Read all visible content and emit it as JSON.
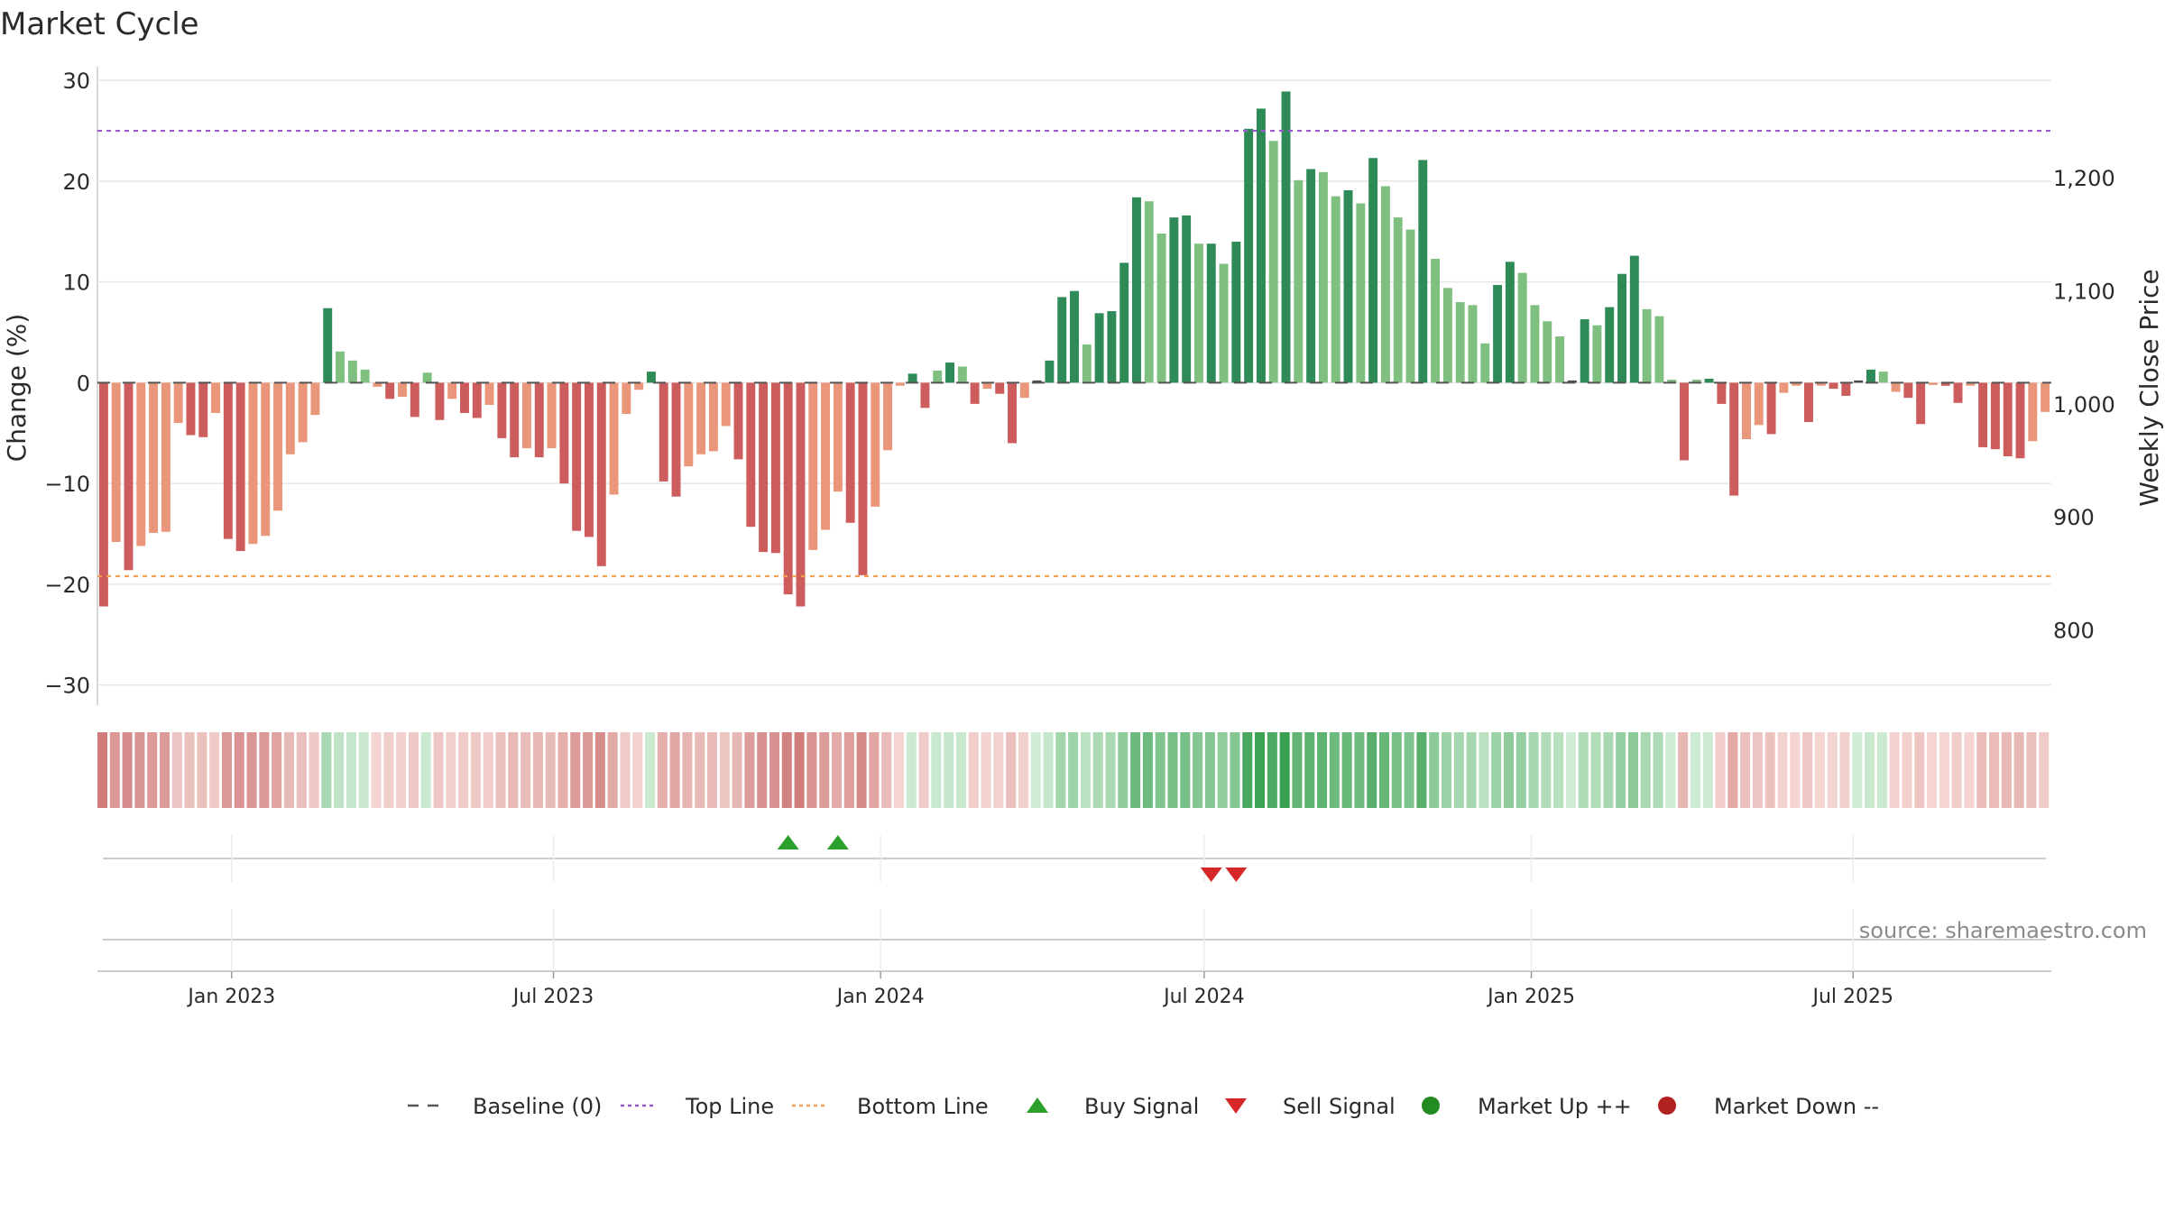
{
  "chart_data": {
    "type": "bar",
    "title": "Market Cycle",
    "ylabel_left": "Change (%)",
    "ylabel_right": "Weekly Close Price",
    "source": "source: sharemaestro.com",
    "ylim": [
      -32,
      31
    ],
    "yticks": [
      30,
      20,
      10,
      0,
      -10,
      -20,
      -30
    ],
    "ytick_labels": [
      "30",
      "20",
      "10",
      "0",
      "−10",
      "−20",
      "−30"
    ],
    "price_ticks": [
      1200,
      1100,
      1000,
      900,
      800
    ],
    "price_tick_labels": [
      "1,200",
      "1,100",
      "1,000",
      "900",
      "800"
    ],
    "top_line": 25,
    "bottom_line": -19.2,
    "x_start": "2022-10-21",
    "x_step_days": 7,
    "x_ticks": [
      "2023-01-01",
      "2023-07-01",
      "2024-01-01",
      "2024-07-01",
      "2025-01-01",
      "2025-07-01"
    ],
    "x_tick_labels": [
      "Jan 2023",
      "Jul 2023",
      "Jan 2024",
      "Jul 2024",
      "Jan 2025",
      "Jul 2025"
    ],
    "values": [
      -22.2,
      -15.8,
      -18.6,
      -16.2,
      -14.9,
      -14.8,
      -4,
      -5.2,
      -5.4,
      -3,
      -15.5,
      -16.7,
      -16,
      -15.2,
      -12.7,
      -7.1,
      -5.9,
      -3.2,
      7.4,
      3.1,
      2.2,
      1.3,
      -0.4,
      -1.6,
      -1.4,
      -3.4,
      1,
      -3.7,
      -1.6,
      -3,
      -3.5,
      -2.2,
      -5.5,
      -7.4,
      -6.5,
      -7.4,
      -6.5,
      -10,
      -14.7,
      -15.3,
      -18.2,
      -11.1,
      -3.1,
      -0.7,
      1.1,
      -9.8,
      -11.3,
      -8.3,
      -7.1,
      -6.8,
      -4.3,
      -7.6,
      -14.3,
      -16.8,
      -16.9,
      -21,
      -22.2,
      -16.6,
      -14.6,
      -10.8,
      -13.9,
      -19.1,
      -12.3,
      -6.7,
      -0.3,
      0.9,
      -2.5,
      1.2,
      2,
      1.6,
      -2.1,
      -0.6,
      -1.1,
      -6,
      -1.5,
      0,
      2.2,
      8.5,
      9.1,
      3.8,
      6.9,
      7.1,
      11.9,
      18.4,
      18,
      14.8,
      16.4,
      16.6,
      13.8,
      13.8,
      11.8,
      14,
      25.2,
      27.2,
      24,
      28.9,
      20.1,
      21.2,
      20.9,
      18.5,
      19.1,
      17.8,
      22.3,
      19.5,
      16.4,
      15.2,
      22.1,
      12.3,
      9.4,
      8,
      7.7,
      3.9,
      9.7,
      12,
      10.9,
      7.7,
      6.1,
      4.6,
      0,
      6.3,
      5.7,
      7.5,
      10.8,
      12.6,
      7.3,
      6.6,
      0.3,
      -7.7,
      0.3,
      0.4,
      -2.1,
      -11.2,
      -5.6,
      -4.2,
      -5.1,
      -1,
      -0.3,
      -3.9,
      -0.3,
      -0.6,
      -1.3,
      0,
      1.3,
      1.1,
      -0.9,
      -1.5,
      -4.1,
      -0.2,
      -0.3,
      -2,
      -0.3,
      -6.4,
      -6.6,
      -7.3,
      -7.5,
      -5.8,
      -2.9
    ],
    "signals": [
      {
        "type": "buy",
        "date": "2023-11-10"
      },
      {
        "type": "buy",
        "date": "2023-12-08"
      },
      {
        "type": "sell",
        "date": "2024-07-05"
      },
      {
        "type": "sell",
        "date": "2024-07-19"
      }
    ],
    "colors": {
      "up_strong": "#2e8b57",
      "up_soft": "#7fbf7f",
      "down_strong": "#cd5c5c",
      "down_soft": "#e9967a",
      "neutral": "#4a4a4a",
      "top_line": "#9b59d0",
      "bottom_line": "#f0a050",
      "buy": "#2ca02c",
      "sell": "#d62728",
      "market_up": "#228b22",
      "market_down": "#b22222"
    },
    "legend": [
      {
        "label": "Baseline (0)",
        "marker": "dash",
        "color": "#555555"
      },
      {
        "label": "Top Line",
        "marker": "dotted",
        "color": "#9b59d0"
      },
      {
        "label": "Bottom Line",
        "marker": "dotted",
        "color": "#f0a050"
      },
      {
        "label": "Buy Signal",
        "marker": "triangle-up",
        "color": "#2ca02c"
      },
      {
        "label": "Sell Signal",
        "marker": "triangle-down",
        "color": "#d62728"
      },
      {
        "label": "Market Up ++",
        "marker": "circle",
        "color": "#228b22"
      },
      {
        "label": "Market Down --",
        "marker": "circle",
        "color": "#b22222"
      }
    ]
  }
}
